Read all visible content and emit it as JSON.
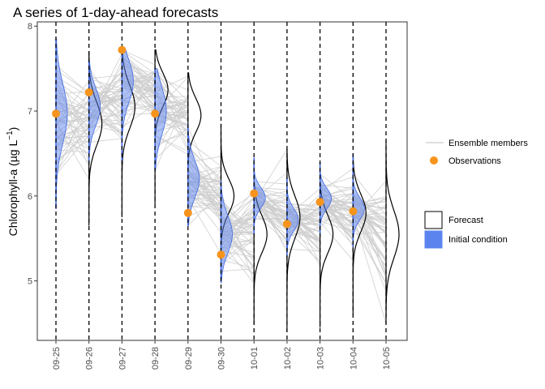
{
  "chart_data": {
    "type": "line",
    "title": "A series of 1-day-ahead forecasts",
    "ylabel_parts": [
      "Chlorophyll-a (",
      "µ",
      "g L",
      "−1",
      ")"
    ],
    "xlabel": "",
    "ylim": [
      4.3,
      8.05
    ],
    "y_ticks": [
      5,
      6,
      7,
      8
    ],
    "categories": [
      "09-25",
      "09-26",
      "09-27",
      "09-28",
      "09-29",
      "09-30",
      "10-01",
      "10-02",
      "10-03",
      "10-04",
      "10-05"
    ],
    "observations": [
      {
        "date": "09-25",
        "value": 6.97
      },
      {
        "date": "09-26",
        "value": 7.22
      },
      {
        "date": "09-27",
        "value": 7.72
      },
      {
        "date": "09-28",
        "value": 6.97
      },
      {
        "date": "09-29",
        "value": 5.8
      },
      {
        "date": "09-30",
        "value": 5.31
      },
      {
        "date": "10-01",
        "value": 6.03
      },
      {
        "date": "10-02",
        "value": 5.67
      },
      {
        "date": "10-03",
        "value": 5.93
      },
      {
        "date": "10-04",
        "value": 5.82
      }
    ],
    "initial_condition": [
      {
        "date": "09-25",
        "mean": 6.97,
        "sd": 0.35,
        "min": 5.85,
        "max": 7.85
      },
      {
        "date": "09-26",
        "mean": 7.05,
        "sd": 0.22,
        "min": 6.4,
        "max": 7.6
      },
      {
        "date": "09-27",
        "mean": 7.35,
        "sd": 0.25,
        "min": 6.4,
        "max": 7.72
      },
      {
        "date": "09-28",
        "mean": 7.0,
        "sd": 0.28,
        "min": 6.3,
        "max": 7.5
      },
      {
        "date": "09-29",
        "mean": 6.2,
        "sd": 0.22,
        "min": 5.65,
        "max": 6.85
      },
      {
        "date": "09-30",
        "mean": 5.55,
        "sd": 0.22,
        "min": 4.98,
        "max": 6.18
      },
      {
        "date": "10-01",
        "mean": 5.98,
        "sd": 0.12,
        "min": 5.55,
        "max": 6.45
      },
      {
        "date": "10-02",
        "mean": 5.72,
        "sd": 0.13,
        "min": 5.28,
        "max": 6.22
      },
      {
        "date": "10-03",
        "mean": 5.97,
        "sd": 0.12,
        "min": 5.55,
        "max": 6.4
      },
      {
        "date": "10-04",
        "mean": 5.85,
        "sd": 0.13,
        "min": 5.4,
        "max": 6.5
      }
    ],
    "forecast": [
      {
        "date": "09-26",
        "mean": 6.85,
        "sd": 0.25,
        "min": 5.65,
        "max": 7.7
      },
      {
        "date": "09-27",
        "mean": 7.05,
        "sd": 0.25,
        "min": 5.75,
        "max": 7.75
      },
      {
        "date": "09-28",
        "mean": 7.25,
        "sd": 0.2,
        "min": 5.9,
        "max": 7.72
      },
      {
        "date": "09-29",
        "mean": 6.95,
        "sd": 0.2,
        "min": 5.7,
        "max": 7.45
      },
      {
        "date": "09-30",
        "mean": 6.0,
        "sd": 0.2,
        "min": 5.1,
        "max": 6.85
      },
      {
        "date": "10-01",
        "mean": 5.55,
        "sd": 0.22,
        "min": 4.5,
        "max": 6.45
      },
      {
        "date": "10-02",
        "mean": 5.75,
        "sd": 0.25,
        "min": 4.4,
        "max": 6.55
      },
      {
        "date": "10-03",
        "mean": 5.55,
        "sd": 0.22,
        "min": 4.45,
        "max": 6.35
      },
      {
        "date": "10-04",
        "mean": 5.8,
        "sd": 0.22,
        "min": 4.6,
        "max": 6.45
      },
      {
        "date": "10-05",
        "mean": 5.55,
        "sd": 0.28,
        "min": 4.5,
        "max": 6.65
      }
    ],
    "legend": {
      "ensemble_label": "Ensemble members",
      "observations_label": "Observations",
      "forecast_label": "Forecast",
      "initial_condition_label": "Initial condition",
      "placement": "right"
    },
    "colors": {
      "ensemble": "#cccccc",
      "observation": "#f7941d",
      "initial_fill": "#5b84ef",
      "initial_line": "#4169e1",
      "forecast_line": "#000000",
      "vline": "#000000"
    },
    "grid": false
  }
}
